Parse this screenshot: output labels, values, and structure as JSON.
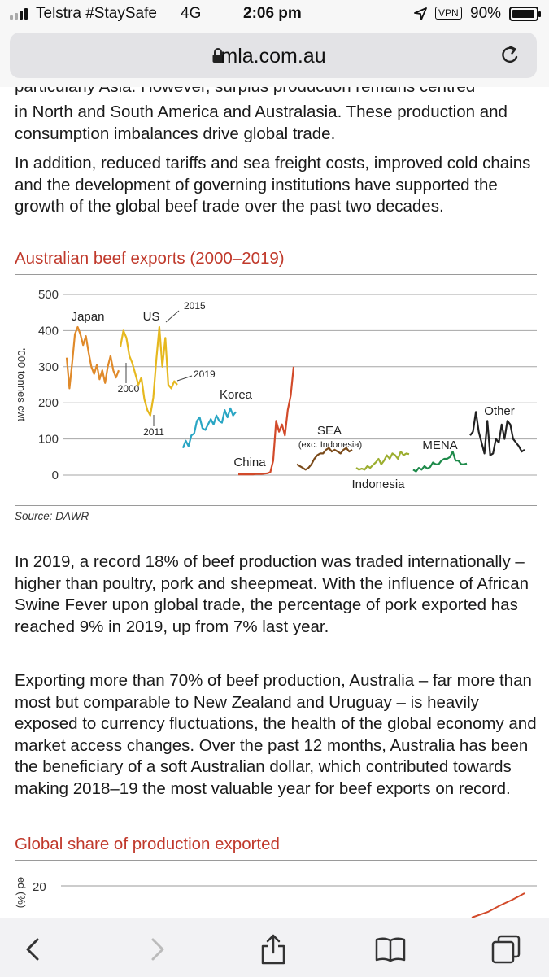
{
  "status_bar": {
    "carrier": "Telstra #StaySafe",
    "network": "4G",
    "time": "2:06 pm",
    "vpn": "VPN",
    "battery": "90%",
    "battery_level": 0.9
  },
  "browser": {
    "url": "mla.com.au"
  },
  "article": {
    "cut_line": "particularly Asia. However, surplus production remains centred",
    "para1_rest": "in North and South America and Australasia. These production and consumption imbalances drive global trade.",
    "para2": "In addition, reduced tariffs and sea freight costs, improved cold chains and the development of governing institutions have supported the growth of the global beef trade over the past two decades.",
    "chart1_heading": "Australian beef exports (2000–2019)",
    "chart1_source": "Source: DAWR",
    "para3": "In 2019, a record 18% of beef production was traded internationally – higher than poultry, pork and sheepmeat. With the influence of African Swine Fever upon global trade, the percentage of pork exported has reached 9% in 2019, up from 7% last year.",
    "para4": "Exporting more than 70% of beef production, Australia – far more than most but comparable to New Zealand and Uruguay – is heavily exposed to currency fluctuations, the health of the global economy and market access changes. Over the past 12 months, Australia has been the beneficiary of a soft Australian dollar, which contributed towards making 2018–19 the most valuable year for beef exports on record.",
    "chart2_heading": "Global share of production exported",
    "chart2_ylabel_partial": "ed (%)",
    "chart2_tick": "20"
  },
  "chart_data": [
    {
      "type": "line",
      "title": "Australian beef exports (2000–2019)",
      "ylabel": "'000 tonnes cwt",
      "ylim": [
        0,
        500
      ],
      "yticks": [
        "500",
        "400",
        "300",
        "200",
        "100",
        "0"
      ],
      "grid": true,
      "x_range": [
        2000,
        2019
      ],
      "annotations": [
        "2015",
        "2000",
        "2019",
        "2011",
        "(exc. Indonesia)"
      ],
      "series": [
        {
          "name": "Japan",
          "color": "#e08a2a",
          "x": [
            2000,
            2001,
            2002,
            2003,
            2004,
            2005,
            2006,
            2007,
            2008,
            2009,
            2010,
            2011,
            2012,
            2013,
            2014,
            2015,
            2016,
            2017,
            2018,
            2019
          ],
          "values": [
            325,
            240,
            310,
            390,
            410,
            390,
            360,
            385,
            340,
            300,
            280,
            305,
            265,
            290,
            255,
            300,
            330,
            290,
            270,
            290
          ]
        },
        {
          "name": "US",
          "color": "#e6b81e",
          "x": [
            2000,
            2001,
            2002,
            2003,
            2004,
            2005,
            2006,
            2007,
            2008,
            2009,
            2010,
            2011,
            2012,
            2013,
            2014,
            2015,
            2016,
            2017,
            2018,
            2019
          ],
          "values": [
            355,
            400,
            380,
            330,
            310,
            280,
            250,
            270,
            210,
            180,
            165,
            215,
            320,
            410,
            300,
            380,
            250,
            240,
            260,
            250
          ]
        },
        {
          "name": "Korea",
          "color": "#2aa6c4",
          "x": [
            2000,
            2001,
            2002,
            2003,
            2004,
            2005,
            2006,
            2007,
            2008,
            2009,
            2010,
            2011,
            2012,
            2013,
            2014,
            2015,
            2016,
            2017,
            2018,
            2019
          ],
          "values": [
            75,
            95,
            80,
            110,
            115,
            150,
            160,
            130,
            125,
            140,
            155,
            140,
            165,
            150,
            145,
            180,
            160,
            185,
            165,
            175
          ]
        },
        {
          "name": "China",
          "color": "#d24a2a",
          "x": [
            2000,
            2001,
            2002,
            2003,
            2004,
            2005,
            2006,
            2007,
            2008,
            2009,
            2010,
            2011,
            2012,
            2013,
            2014,
            2015,
            2016,
            2017,
            2018,
            2019
          ],
          "values": [
            2,
            2,
            2,
            2,
            2,
            2,
            3,
            3,
            3,
            4,
            5,
            8,
            40,
            150,
            120,
            140,
            110,
            180,
            220,
            300
          ]
        },
        {
          "name": "SEA",
          "color": "#7a4a1a",
          "x": [
            2000,
            2001,
            2002,
            2003,
            2004,
            2005,
            2006,
            2007,
            2008,
            2009,
            2010,
            2011,
            2012,
            2013,
            2014,
            2015,
            2016,
            2017,
            2018,
            2019
          ],
          "values": [
            30,
            25,
            20,
            15,
            20,
            30,
            45,
            55,
            60,
            60,
            70,
            75,
            65,
            70,
            65,
            60,
            70,
            75,
            65,
            70
          ]
        },
        {
          "name": "Indonesia",
          "color": "#9cae30",
          "x": [
            2000,
            2001,
            2002,
            2003,
            2004,
            2005,
            2006,
            2007,
            2008,
            2009,
            2010,
            2011,
            2012,
            2013,
            2014,
            2015,
            2016,
            2017,
            2018,
            2019
          ],
          "values": [
            20,
            15,
            18,
            15,
            25,
            20,
            28,
            35,
            45,
            30,
            40,
            55,
            45,
            60,
            55,
            45,
            65,
            55,
            60,
            58
          ]
        },
        {
          "name": "MENA",
          "color": "#1e8a4a",
          "x": [
            2000,
            2001,
            2002,
            2003,
            2004,
            2005,
            2006,
            2007,
            2008,
            2009,
            2010,
            2011,
            2012,
            2013,
            2014,
            2015,
            2016,
            2017,
            2018,
            2019
          ],
          "values": [
            15,
            10,
            20,
            15,
            25,
            18,
            22,
            35,
            30,
            30,
            40,
            45,
            45,
            50,
            65,
            40,
            40,
            30,
            30,
            32
          ]
        },
        {
          "name": "Other",
          "color": "#222222",
          "x": [
            2000,
            2001,
            2002,
            2003,
            2004,
            2005,
            2006,
            2007,
            2008,
            2009,
            2010,
            2011,
            2012,
            2013,
            2014,
            2015,
            2016,
            2017,
            2018,
            2019
          ],
          "values": [
            110,
            120,
            175,
            120,
            90,
            60,
            150,
            55,
            60,
            100,
            90,
            140,
            100,
            150,
            140,
            100,
            90,
            80,
            65,
            70
          ]
        }
      ]
    },
    {
      "type": "line",
      "title": "Global share of production exported",
      "ylabel": "ed (%)",
      "yticks": [
        "20"
      ],
      "series": [
        {
          "name": "",
          "color": "#d24a2a",
          "values": [
            12,
            14,
            16,
            18,
            20
          ]
        }
      ]
    }
  ]
}
